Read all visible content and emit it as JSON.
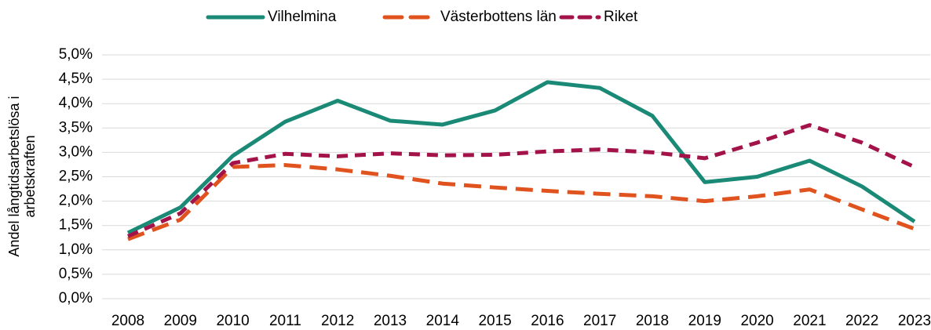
{
  "chart_data": {
    "type": "line",
    "y_label": "Andel långtidsarbetslösa i arbetskraften",
    "categories": [
      "2008",
      "2009",
      "2010",
      "2011",
      "2012",
      "2013",
      "2014",
      "2015",
      "2016",
      "2017",
      "2018",
      "2019",
      "2020",
      "2021",
      "2022",
      "2023"
    ],
    "series": [
      {
        "name": "Vilhelmina",
        "color": "#1a8a76",
        "dash": "solid",
        "values": [
          1.35,
          1.87,
          2.93,
          3.63,
          4.06,
          3.65,
          3.57,
          3.86,
          4.44,
          4.32,
          3.75,
          2.39,
          2.5,
          2.83,
          2.3,
          1.58
        ]
      },
      {
        "name": "Västerbottens län",
        "color": "#e0531f",
        "dash": "long",
        "values": [
          1.22,
          1.62,
          2.7,
          2.74,
          2.65,
          2.52,
          2.36,
          2.28,
          2.21,
          2.15,
          2.1,
          2.0,
          2.1,
          2.24,
          1.83,
          1.43
        ]
      },
      {
        "name": "Riket",
        "color": "#a3134a",
        "dash": "short",
        "values": [
          1.28,
          1.75,
          2.78,
          2.97,
          2.92,
          2.98,
          2.94,
          2.95,
          3.02,
          3.06,
          3.0,
          2.88,
          3.2,
          3.56,
          3.2,
          2.7
        ]
      }
    ],
    "ylim": [
      0,
      5
    ],
    "yticks": [
      {
        "value": 0,
        "label": "0,0%"
      },
      {
        "value": 0.5,
        "label": "0,5%"
      },
      {
        "value": 1,
        "label": "1,0%"
      },
      {
        "value": 1.5,
        "label": "1,5%"
      },
      {
        "value": 2,
        "label": "2,0%"
      },
      {
        "value": 2.5,
        "label": "2,5%"
      },
      {
        "value": 3,
        "label": "3,0%"
      },
      {
        "value": 3.5,
        "label": "3,5%"
      },
      {
        "value": 4,
        "label": "4,0%"
      },
      {
        "value": 4.5,
        "label": "4,5%"
      },
      {
        "value": 5,
        "label": "5,0%"
      }
    ],
    "grid": true,
    "legend": "top"
  }
}
